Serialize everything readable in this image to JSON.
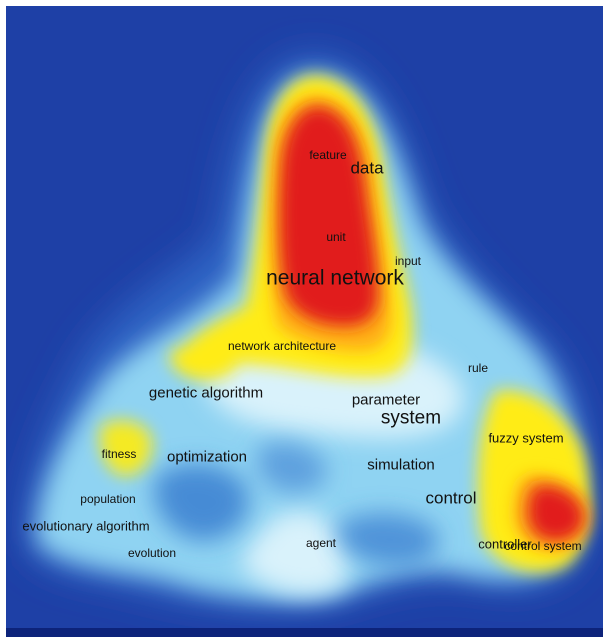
{
  "map": {
    "colors": {
      "background": "#1e40a6",
      "deep_blue": "#2755b8",
      "light_blue": "#8fd3f2",
      "pale": "#d9f2fb",
      "yellow": "#ffec12",
      "orange": "#ffae15",
      "red": "#e11e1e"
    },
    "terms": [
      {
        "id": "feature",
        "text": "feature"
      },
      {
        "id": "data",
        "text": "data"
      },
      {
        "id": "unit",
        "text": "unit"
      },
      {
        "id": "input",
        "text": "input"
      },
      {
        "id": "neural-network",
        "text": "neural network"
      },
      {
        "id": "network-architecture",
        "text": "network architecture"
      },
      {
        "id": "rule",
        "text": "rule"
      },
      {
        "id": "genetic-algorithm",
        "text": "genetic algorithm"
      },
      {
        "id": "parameter",
        "text": "parameter"
      },
      {
        "id": "system",
        "text": "system"
      },
      {
        "id": "fuzzy-system",
        "text": "fuzzy system"
      },
      {
        "id": "fitness",
        "text": "fitness"
      },
      {
        "id": "optimization",
        "text": "optimization"
      },
      {
        "id": "simulation",
        "text": "simulation"
      },
      {
        "id": "control",
        "text": "control"
      },
      {
        "id": "population",
        "text": "population"
      },
      {
        "id": "evolutionary-algorithm",
        "text": "evolutionary algorithm"
      },
      {
        "id": "evolution",
        "text": "evolution"
      },
      {
        "id": "agent",
        "text": "agent"
      },
      {
        "id": "controller",
        "text": "controller"
      },
      {
        "id": "control-system",
        "text": "control system"
      }
    ]
  }
}
